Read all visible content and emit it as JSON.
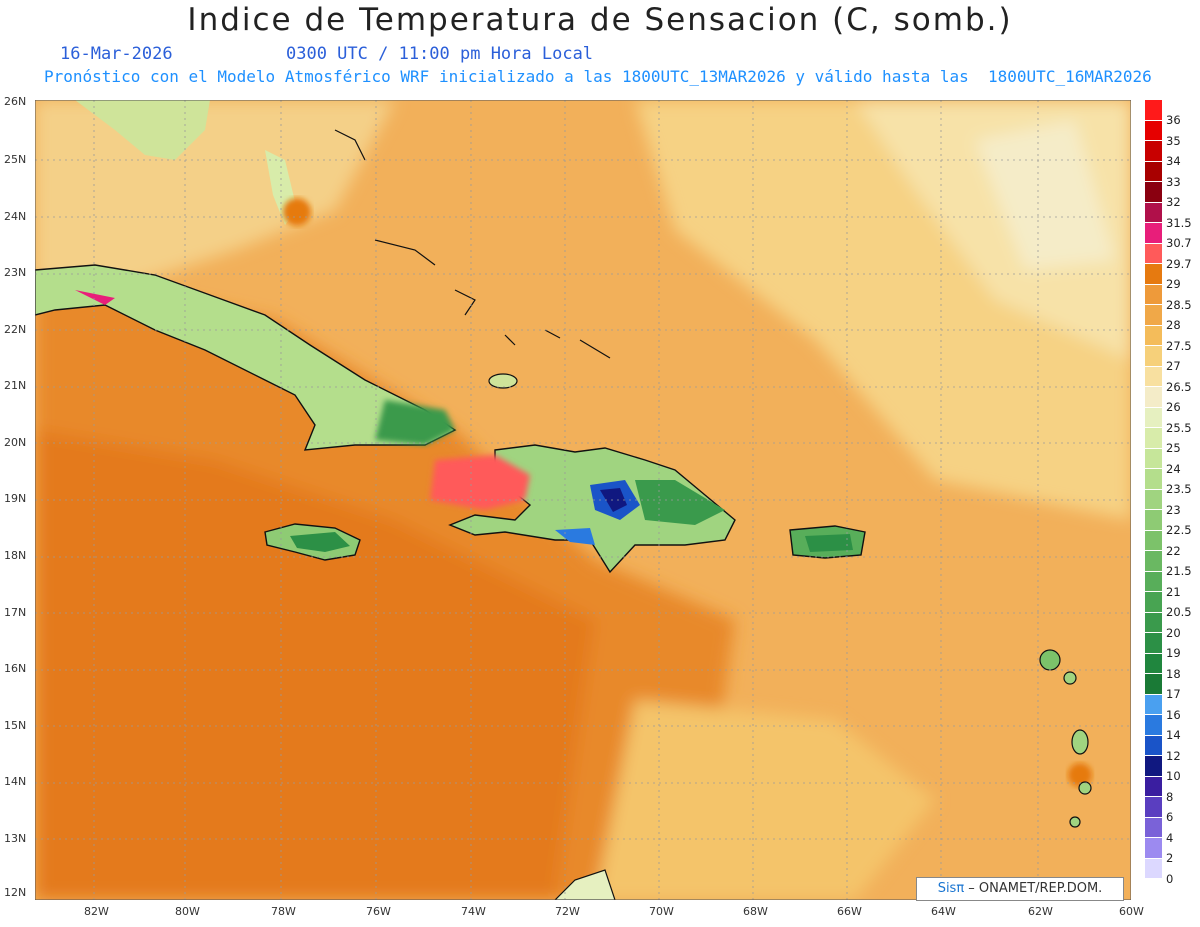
{
  "title": "Indice de Temperatura de Sensacion (C, somb.)",
  "date": "16-Mar-2026",
  "time": "0300 UTC / 11:00 pm Hora Local",
  "model_line": "Pronóstico con el Modelo Atmosférico WRF inicializado a las 1800UTC_13MAR2026 y válido hasta las  1800UTC_16MAR2026",
  "lat_labels": [
    "26N",
    "25N",
    "24N",
    "23N",
    "22N",
    "21N",
    "20N",
    "19N",
    "18N",
    "17N",
    "16N",
    "15N",
    "14N",
    "13N",
    "12N"
  ],
  "lon_labels": [
    "82W",
    "80W",
    "78W",
    "76W",
    "74W",
    "72W",
    "70W",
    "68W",
    "66W",
    "64W",
    "62W",
    "60W"
  ],
  "colorbar": {
    "labels": [
      "36",
      "35",
      "34",
      "33",
      "32",
      "31.5",
      "30.7",
      "29.7",
      "29",
      "28.5",
      "28",
      "27.5",
      "27",
      "26.5",
      "26",
      "25.5",
      "25",
      "24",
      "23.5",
      "23",
      "22.5",
      "22",
      "21.5",
      "21",
      "20.5",
      "20",
      "19",
      "18",
      "17",
      "16",
      "14",
      "12",
      "10",
      "8",
      "6",
      "4",
      "2",
      "0"
    ],
    "colors": [
      "#ff1a1a",
      "#e60000",
      "#c80000",
      "#a80000",
      "#8a0010",
      "#b0104a",
      "#e81e7a",
      "#ff5a5a",
      "#e67a10",
      "#ee9a3a",
      "#f0a848",
      "#f4bc5a",
      "#f6d07a",
      "#f8e0a0",
      "#f4ecc8",
      "#e6f0c0",
      "#d8ecaa",
      "#c6e69a",
      "#b4de8c",
      "#a0d480",
      "#8ecb74",
      "#7cc26a",
      "#6ab862",
      "#58ae5a",
      "#48a452",
      "#3a9a4c",
      "#2c9046",
      "#20863e",
      "#1a7a36",
      "#4aa0f0",
      "#2a7ae0",
      "#1a54c8",
      "#101880",
      "#3a1ea0",
      "#5a3ec0",
      "#7a62d8",
      "#9c8af0",
      "#dcd8ff"
    ]
  },
  "credit": {
    "brand": "Sisπ",
    "org": " – ONAMET/REP.DOM."
  }
}
